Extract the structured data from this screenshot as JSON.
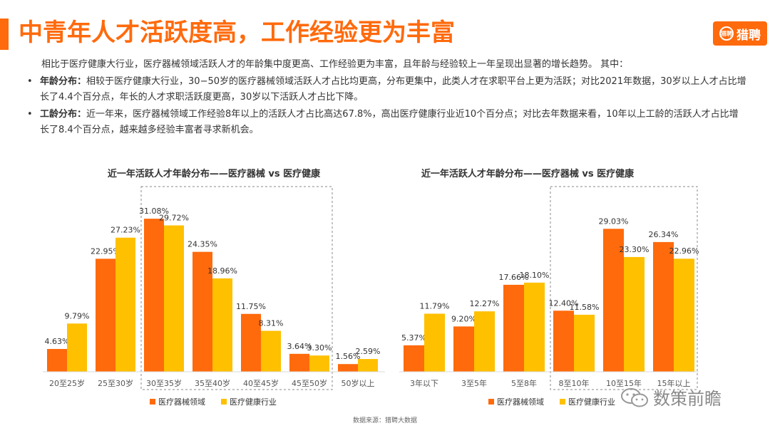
{
  "header": {
    "title": "中青年人才活跃度高，工作经验更为丰富",
    "logo_glyph": "猎聘",
    "logo_text": "猎聘"
  },
  "intro": "相比于医疗健康大行业，医疗器械领域活跃人才的年龄集中度更高、工作经验更为丰富，且年龄与经验较上一年呈现出显著的增长趋势。 其中：",
  "bullets": [
    {
      "dot": "•",
      "keyword": "年龄分布",
      "sep": "：",
      "text": "相较于医疗健康大行业，30−50岁的医疗器械领域活跃人才占比均更高，分布更集中，此类人才在求职平台上更为活跃；对比2021年数据，30岁以上人才占比增长了4.4个百分点，年长的人才求职活跃度更高，30岁以下活跃人才占比下降。"
    },
    {
      "dot": "•",
      "keyword": "工龄分布",
      "sep": "：",
      "text": "近一年来，医疗器械领域工作经验8年以上的活跃人才占比高达67.8%，高出医疗健康行业近10个百分点；对比去年数据来看，10年以上工龄的活跃人才占比增长了8.4个百分点，越来越多经验丰富者寻求新机会。"
    }
  ],
  "colors": {
    "accent": "#ff6a0c",
    "series_a": "#ff6a0c",
    "series_b": "#ffc000"
  },
  "chart_data": [
    {
      "type": "bar",
      "title": "近一年活跃人才年龄分布——医疗器械 vs 医疗健康",
      "categories": [
        "20至25岁",
        "25至30岁",
        "30至35岁",
        "35至40岁",
        "40至45岁",
        "45至50岁",
        "50岁以上"
      ],
      "series": [
        {
          "name": "医疗器械领域",
          "values": [
            4.63,
            22.95,
            31.08,
            24.35,
            11.75,
            3.64,
            1.56
          ],
          "labels": [
            "4.63%",
            "22.95%",
            "31.08%",
            "24.35%",
            "11.75%",
            "3.64%",
            "1.56%"
          ]
        },
        {
          "name": "医疗健康行业",
          "values": [
            9.79,
            27.23,
            29.72,
            18.96,
            8.31,
            3.3,
            2.59
          ],
          "labels": [
            "9.79%",
            "27.23%",
            "29.72%",
            "18.96%",
            "8.31%",
            "3.30%",
            "2.59%"
          ]
        }
      ],
      "ylim": [
        0,
        35
      ],
      "highlight_range": [
        2,
        5
      ],
      "legend": "bottom"
    },
    {
      "type": "bar",
      "title": "近一年活跃人才年龄分布——医疗器械 vs 医疗健康",
      "categories": [
        "3年以下",
        "3至5年",
        "5至8年",
        "8至10年",
        "10至15年",
        "15年以上"
      ],
      "series": [
        {
          "name": "医疗器械领域",
          "values": [
            5.37,
            9.2,
            17.66,
            12.4,
            29.03,
            26.34
          ],
          "labels": [
            "5.37%",
            "9.20%",
            "17.66%",
            "12.40%",
            "29.03%",
            "26.34%"
          ]
        },
        {
          "name": "医疗健康行业",
          "values": [
            11.79,
            12.27,
            18.1,
            11.58,
            23.3,
            22.96
          ],
          "labels": [
            "11.79%",
            "12.27%",
            "18.10%",
            "11.58%",
            "23.30%",
            "22.96%"
          ]
        }
      ],
      "ylim": [
        0,
        35
      ],
      "highlight_range": [
        3,
        5
      ],
      "legend": "bottom"
    }
  ],
  "watermark": "数策前瞻",
  "source": "数据来源：猎聘大数据"
}
